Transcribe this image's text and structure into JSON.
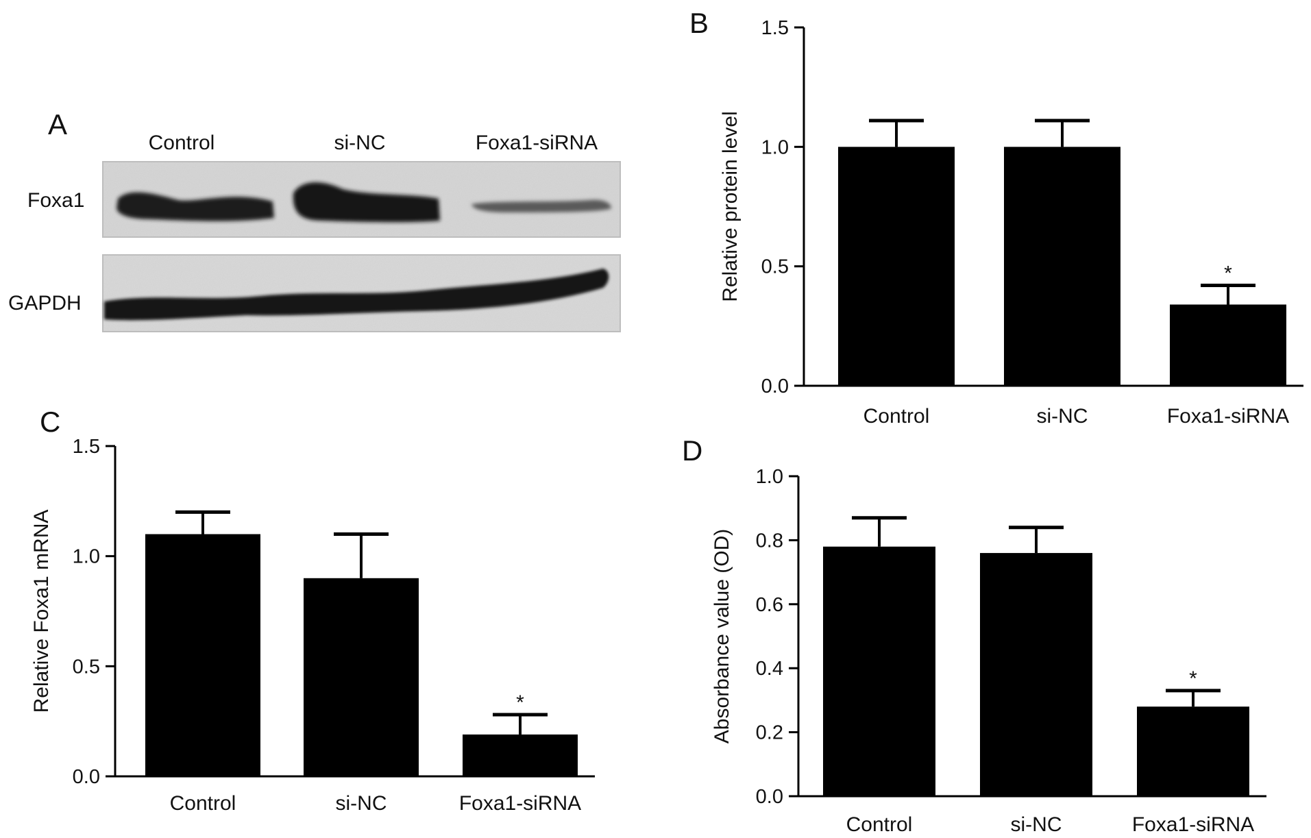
{
  "panel_letters": {
    "a": "A",
    "b": "B",
    "c": "C",
    "d": "D"
  },
  "blot": {
    "lanes": [
      "Control",
      "si-NC",
      "Foxa1-siRNA"
    ],
    "rows": [
      "Foxa1",
      "GAPDH"
    ]
  },
  "chart_data": [
    {
      "type": "bar",
      "panel": "B",
      "categories": [
        "Control",
        "si-NC",
        "Foxa1-siRNA"
      ],
      "values": [
        1.0,
        1.0,
        0.34
      ],
      "errors": [
        0.11,
        0.11,
        0.08
      ],
      "significance": [
        "",
        "",
        "*"
      ],
      "ylabel": "Relative protein level",
      "ylim": [
        0,
        1.5
      ],
      "yticks": [
        "0.0",
        "0.5",
        "1.0",
        "1.5"
      ],
      "color": "#000000"
    },
    {
      "type": "bar",
      "panel": "C",
      "categories": [
        "Control",
        "si-NC",
        "Foxa1-siRNA"
      ],
      "values": [
        1.1,
        0.9,
        0.19
      ],
      "errors": [
        0.1,
        0.2,
        0.09
      ],
      "significance": [
        "",
        "",
        "*"
      ],
      "ylabel": "Relative Foxa1 mRNA",
      "ylim": [
        0,
        1.5
      ],
      "yticks": [
        "0.0",
        "0.5",
        "1.0",
        "1.5"
      ],
      "color": "#000000"
    },
    {
      "type": "bar",
      "panel": "D",
      "categories": [
        "Control",
        "si-NC",
        "Foxa1-siRNA"
      ],
      "values": [
        0.78,
        0.76,
        0.28
      ],
      "errors": [
        0.09,
        0.08,
        0.05
      ],
      "significance": [
        "",
        "",
        "*"
      ],
      "ylabel": "Absorbance value (OD)",
      "ylim": [
        0,
        1.0
      ],
      "yticks": [
        "0.0",
        "0.2",
        "0.4",
        "0.6",
        "0.8",
        "1.0"
      ],
      "color": "#000000"
    }
  ]
}
